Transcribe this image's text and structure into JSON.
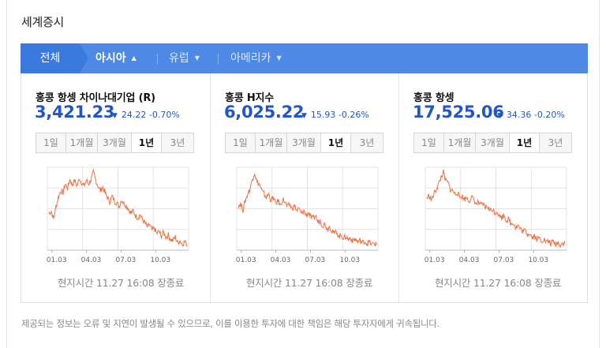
{
  "title": "세계증시",
  "tabs": {
    "first": "전체",
    "items": [
      {
        "label": "아시아",
        "active": true
      },
      {
        "label": "유럽",
        "active": false
      },
      {
        "label": "아메리카",
        "active": false
      }
    ]
  },
  "colors": {
    "accent": "#2255c9",
    "tabbar": "#4e89e6",
    "tab_first": "#3a79dd",
    "line": "#f07040"
  },
  "periods": [
    "1일",
    "1개월",
    "3개월",
    "1년",
    "3년"
  ],
  "selected_period": "1년",
  "panels": [
    {
      "name": "홍콩 항셍 차이나대기업 (R)",
      "value": "3,421.23",
      "change": "24.22 -0.70%",
      "time": "현지시간 11.27 16:08 장종료",
      "chart_data": {
        "type": "line",
        "xticks": [
          "01.03",
          "04.03",
          "07.03",
          "10.03"
        ],
        "values": [
          3700,
          3720,
          3650,
          3760,
          3840,
          3900,
          3880,
          3960,
          3920,
          4000,
          3950,
          3990,
          3940,
          4010,
          3970,
          3940,
          3990,
          3960,
          4000,
          4060,
          3990,
          3940,
          3900,
          3930,
          3880,
          3840,
          3800,
          3850,
          3810,
          3790,
          3760,
          3820,
          3790,
          3770,
          3740,
          3700,
          3720,
          3680,
          3660,
          3690,
          3640,
          3620,
          3580,
          3600,
          3550,
          3570,
          3520,
          3540,
          3500,
          3530,
          3490,
          3510,
          3470,
          3460,
          3490,
          3440,
          3460,
          3430,
          3450,
          3421
        ]
      }
    },
    {
      "name": "홍콩 H지수",
      "value": "6,025.22",
      "change": "15.93 -0.26%",
      "time": "현지시간 11.27 16:08 장종료",
      "chart_data": {
        "type": "line",
        "xticks": [
          "01.03",
          "04.03",
          "07.03",
          "10.03"
        ],
        "values": [
          6500,
          6520,
          6450,
          6560,
          6640,
          6700,
          6820,
          6900,
          6780,
          6760,
          6680,
          6640,
          6600,
          6640,
          6560,
          6600,
          6520,
          6560,
          6500,
          6580,
          6540,
          6480,
          6520,
          6460,
          6500,
          6440,
          6460,
          6400,
          6440,
          6380,
          6420,
          6360,
          6340,
          6380,
          6300,
          6320,
          6260,
          6280,
          6220,
          6250,
          6200,
          6160,
          6190,
          6120,
          6150,
          6100,
          6130,
          6090,
          6110,
          6070,
          6100,
          6060,
          6080,
          6050,
          6070,
          6040,
          6060,
          6030,
          6045,
          6025
        ]
      }
    },
    {
      "name": "홍콩 항셍",
      "value": "17,525.06",
      "change": "34.36 -0.20%",
      "time": "현지시간 11.27 16:08 장종료",
      "chart_data": {
        "type": "line",
        "xticks": [
          "01.03",
          "04.03",
          "07.03",
          "10.03"
        ],
        "values": [
          18900,
          18950,
          18820,
          19000,
          19150,
          19300,
          19500,
          19650,
          19400,
          19350,
          19150,
          19100,
          19000,
          19060,
          18900,
          18950,
          18850,
          18900,
          18800,
          18900,
          18850,
          18700,
          18760,
          18650,
          18700,
          18600,
          18640,
          18500,
          18550,
          18450,
          18480,
          18350,
          18300,
          18380,
          18200,
          18250,
          18100,
          18150,
          18000,
          18060,
          17950,
          17880,
          17920,
          17800,
          17850,
          17700,
          17760,
          17650,
          17700,
          17600,
          17660,
          17560,
          17600,
          17520,
          17580,
          17500,
          17560,
          17480,
          17540,
          17525
        ]
      }
    }
  ],
  "footer": "제공되는 정보는 오류 및 지연이 발생될 수 있으므로, 이를 이용한 투자에 대한 책임은 해당 투자자에게 귀속됩니다."
}
